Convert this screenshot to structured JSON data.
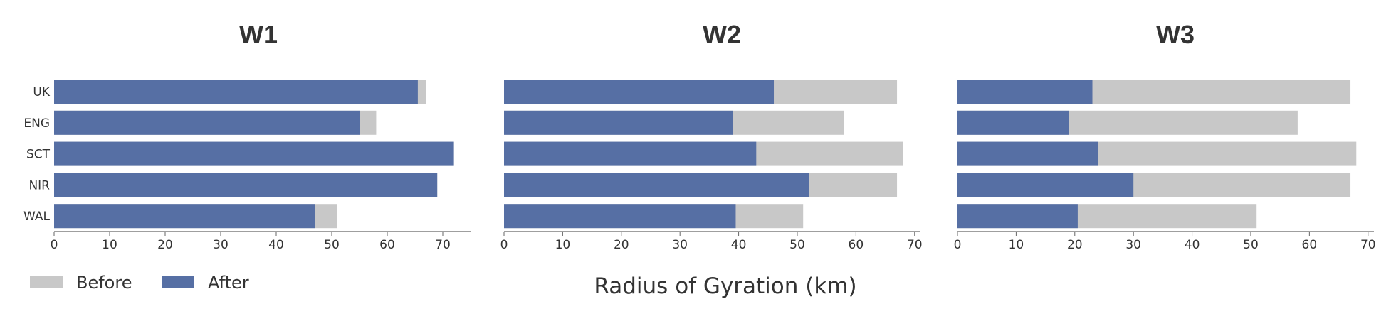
{
  "chart_data": [
    {
      "type": "bar",
      "orientation": "horizontal",
      "title": "W1",
      "categories": [
        "UK",
        "ENG",
        "SCT",
        "NIR",
        "WAL"
      ],
      "series": [
        {
          "name": "Before",
          "values": [
            67,
            58,
            72,
            69,
            51
          ]
        },
        {
          "name": "After",
          "values": [
            65.5,
            55,
            72,
            69,
            47
          ]
        }
      ],
      "xlim": [
        0,
        75
      ],
      "xticks": [
        0,
        10,
        20,
        30,
        40,
        50,
        60,
        70
      ],
      "grid": false
    },
    {
      "type": "bar",
      "orientation": "horizontal",
      "title": "W2",
      "categories": [
        "UK",
        "ENG",
        "SCT",
        "NIR",
        "WAL"
      ],
      "series": [
        {
          "name": "Before",
          "values": [
            67,
            58,
            68,
            67,
            51
          ]
        },
        {
          "name": "After",
          "values": [
            46,
            39,
            43,
            52,
            39.5
          ]
        }
      ],
      "xlim": [
        0,
        71
      ],
      "xticks": [
        0,
        10,
        20,
        30,
        40,
        50,
        60,
        70
      ],
      "grid": false
    },
    {
      "type": "bar",
      "orientation": "horizontal",
      "title": "W3",
      "categories": [
        "UK",
        "ENG",
        "SCT",
        "NIR",
        "WAL"
      ],
      "series": [
        {
          "name": "Before",
          "values": [
            67,
            58,
            68,
            67,
            51
          ]
        },
        {
          "name": "After",
          "values": [
            23,
            19,
            24,
            30,
            20.5
          ]
        }
      ],
      "xlim": [
        0,
        71
      ],
      "xticks": [
        0,
        10,
        20,
        30,
        40,
        50,
        60,
        70
      ],
      "grid": false
    }
  ],
  "legend": {
    "placement": "bottom-left",
    "items": [
      {
        "label": "Before",
        "color": "#c8c8c8"
      },
      {
        "label": "After",
        "color": "#566fa4"
      }
    ]
  },
  "xlabel": "Radius of Gyration (km)",
  "colors": {
    "before": "#c8c8c8",
    "after": "#566fa4",
    "axis": "#666666",
    "text": "#333333"
  }
}
